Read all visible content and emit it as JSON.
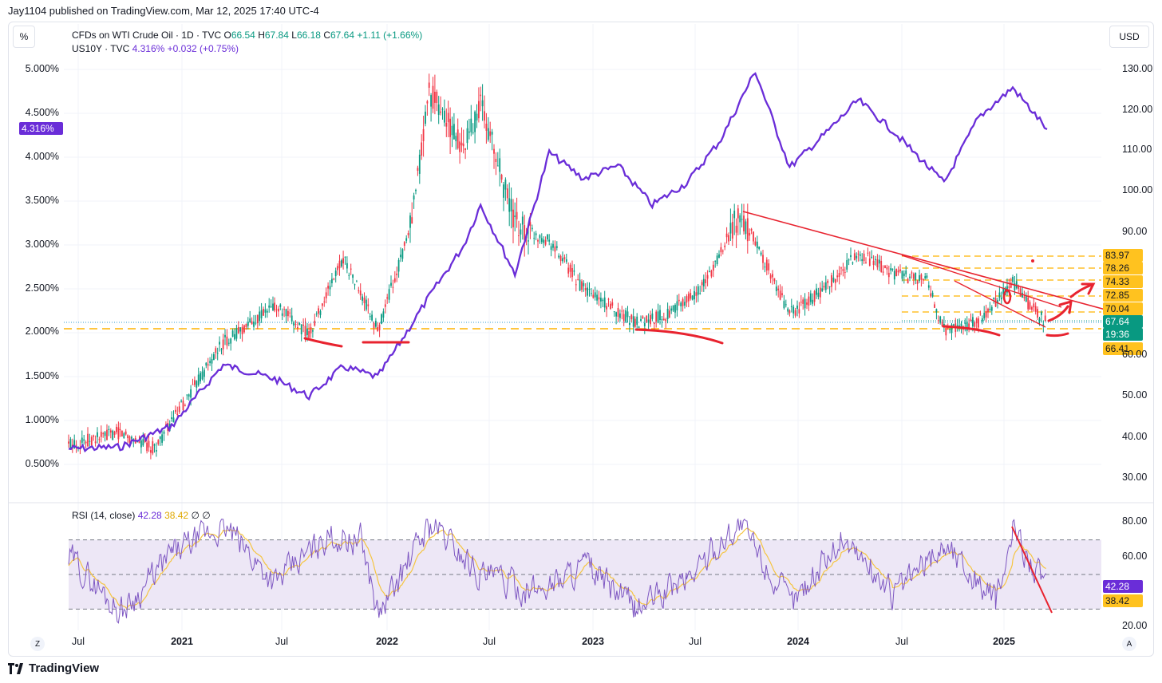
{
  "publisher_line": "Jay1104 published on TradingView.com, Mar 12, 2025 17:40 UTC-4",
  "toolbar": {
    "percent_label": "%",
    "currency_label": "USD"
  },
  "legend": {
    "oil": {
      "title": "CFDs on WTI Crude Oil · 1D · TVC",
      "o_label": "O",
      "o_value": "66.54",
      "h_label": "H",
      "h_value": "67.84",
      "l_label": "L",
      "l_value": "66.18",
      "c_label": "C",
      "c_value": "67.64",
      "change": "+1.11 (+1.66%)"
    },
    "yield": {
      "title": "US10Y · TVC",
      "value": "4.316%",
      "change": "+0.032 (+0.75%)"
    },
    "rsi": {
      "title": "RSI (14, close)",
      "value1": "42.28",
      "value2": "38.42",
      "icon1": "∅",
      "icon2": "∅"
    }
  },
  "badges": {
    "yield_current": "4.316%",
    "oil_levels": [
      "83.97",
      "78.26",
      "74.33",
      "72.85",
      "70.04"
    ],
    "oil_price": "67.64",
    "oil_countdown": "19:36",
    "oil_support": "66.41",
    "rsi_value1": "42.28",
    "rsi_value2": "38.42"
  },
  "left_axis": [
    "5.000%",
    "4.500%",
    "4.000%",
    "3.500%",
    "3.000%",
    "2.500%",
    "2.000%",
    "1.500%",
    "1.000%",
    "0.500%"
  ],
  "right_axis": [
    "130.00",
    "120.00",
    "110.00",
    "100.00",
    "90.00",
    "80.00",
    "70.00",
    "60.00",
    "50.00",
    "40.00",
    "30.00"
  ],
  "rsi_axis": [
    "80.00",
    "60.00",
    "40.00",
    "20.00"
  ],
  "x_axis": [
    {
      "label": "Jul",
      "year": false
    },
    {
      "label": "2021",
      "year": true
    },
    {
      "label": "Jul",
      "year": false
    },
    {
      "label": "2022",
      "year": true
    },
    {
      "label": "Jul",
      "year": false
    },
    {
      "label": "2023",
      "year": true
    },
    {
      "label": "Jul",
      "year": false
    },
    {
      "label": "2024",
      "year": true
    },
    {
      "label": "Jul",
      "year": false
    },
    {
      "label": "2025",
      "year": true
    }
  ],
  "corner_buttons": {
    "left": "Z",
    "right": "A"
  },
  "brand": "TradingView",
  "colors": {
    "yield_line": "#6a2dd8",
    "candle_up": "#089981",
    "candle_down": "#f23645",
    "annotation": "#e8232f",
    "level_line": "#ffb300",
    "rsi_line": "#7e57c2",
    "rsi_ma": "#f5c542",
    "rsi_band": "#ede7f6"
  },
  "chart_data": [
    {
      "type": "line",
      "name": "US10Y · TVC",
      "axis": "left",
      "x": [
        "2020-06",
        "2020-09",
        "2020-12",
        "2021-03",
        "2021-06",
        "2021-08",
        "2021-10",
        "2021-12",
        "2022-01",
        "2022-03",
        "2022-05",
        "2022-06",
        "2022-08",
        "2022-10",
        "2022-12",
        "2023-02",
        "2023-04",
        "2023-06",
        "2023-08",
        "2023-10",
        "2023-12",
        "2024-02",
        "2024-04",
        "2024-06",
        "2024-08",
        "2024-09",
        "2024-11",
        "2025-01",
        "2025-03"
      ],
      "y": [
        0.66,
        0.68,
        0.92,
        1.62,
        1.46,
        1.26,
        1.6,
        1.48,
        1.78,
        2.4,
        2.98,
        3.45,
        2.66,
        4.05,
        3.75,
        3.9,
        3.45,
        3.7,
        4.2,
        4.98,
        3.88,
        4.25,
        4.65,
        4.3,
        3.9,
        3.7,
        4.45,
        4.79,
        4.316
      ],
      "ylim": [
        0.3,
        5.2
      ]
    },
    {
      "type": "line",
      "name": "CFDs on WTI Crude Oil · 1D · TVC",
      "axis": "right",
      "x": [
        "2020-06",
        "2020-09",
        "2020-11",
        "2021-03",
        "2021-06",
        "2021-08",
        "2021-10",
        "2021-12",
        "2022-02",
        "2022-03",
        "2022-05",
        "2022-06",
        "2022-08",
        "2022-10",
        "2022-12",
        "2023-03",
        "2023-05",
        "2023-07",
        "2023-09",
        "2023-10",
        "2023-12",
        "2024-02",
        "2024-04",
        "2024-06",
        "2024-08",
        "2024-09",
        "2024-11",
        "2025-01",
        "2025-02",
        "2025-03"
      ],
      "y": [
        38,
        41,
        37,
        63,
        72,
        65,
        84,
        66,
        92,
        125,
        110,
        122,
        92,
        88,
        76,
        68,
        70,
        77,
        94,
        88,
        70,
        76,
        85,
        80,
        78,
        66,
        68,
        78,
        72,
        67.64
      ],
      "ylim": [
        26,
        133
      ]
    },
    {
      "type": "line",
      "name": "RSI (14, close)",
      "x": [
        "2020-06",
        "2020-09",
        "2020-12",
        "2021-03",
        "2021-06",
        "2021-09",
        "2021-11",
        "2021-12",
        "2022-03",
        "2022-06",
        "2022-09",
        "2022-12",
        "2023-03",
        "2023-06",
        "2023-09",
        "2023-12",
        "2024-03",
        "2024-06",
        "2024-09",
        "2024-12",
        "2025-01",
        "2025-03"
      ],
      "y": [
        60,
        28,
        62,
        78,
        45,
        72,
        70,
        26,
        80,
        50,
        40,
        55,
        30,
        48,
        80,
        32,
        72,
        38,
        68,
        34,
        75,
        42.28
      ],
      "levels": [
        70,
        50,
        30
      ],
      "ylim": [
        17,
        84
      ]
    }
  ]
}
